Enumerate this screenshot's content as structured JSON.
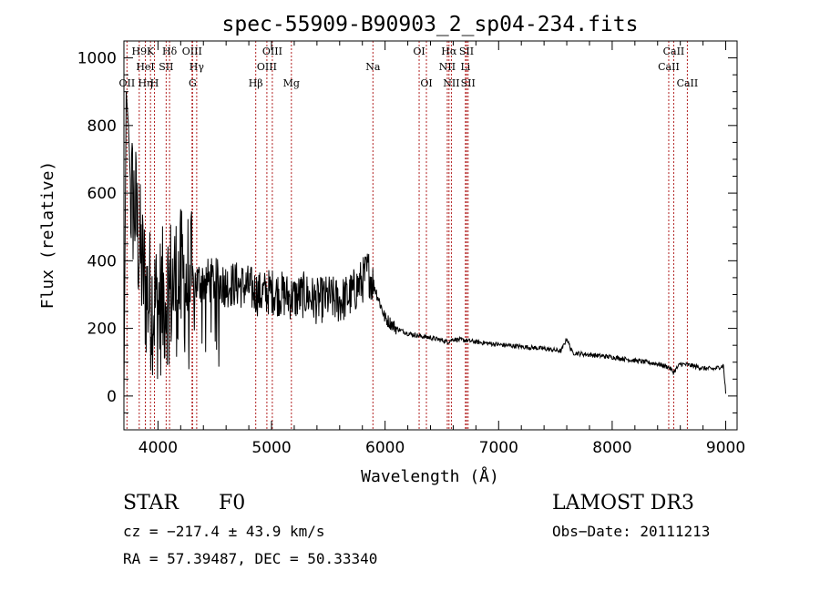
{
  "chart_data": {
    "type": "line",
    "title": "spec-55909-B90903_2_sp04-234.fits",
    "xlabel": "Wavelength (Å)",
    "ylabel": "Flux (relative)",
    "xlim": [
      3700,
      9100
    ],
    "ylim": [
      -100,
      1050
    ],
    "xticks": [
      4000,
      5000,
      6000,
      7000,
      8000,
      9000
    ],
    "xtick_labels": [
      "4000",
      "5000",
      "6000",
      "7000",
      "8000",
      "9000"
    ],
    "yticks": [
      0,
      200,
      400,
      600,
      800,
      1000
    ],
    "ytick_labels": [
      "0",
      "200",
      "400",
      "600",
      "800",
      "1000"
    ],
    "line_color": "#000000",
    "marker_color": "#b22222",
    "spectrum_anchor_points": {
      "x": [
        3700,
        3720,
        3740,
        3760,
        3800,
        3850,
        3900,
        3950,
        4000,
        4100,
        4200,
        4300,
        4400,
        4500,
        4600,
        4700,
        4800,
        4900,
        5000,
        5100,
        5200,
        5300,
        5400,
        5500,
        5600,
        5700,
        5800,
        5850,
        5900,
        5950,
        6000,
        6100,
        6200,
        6300,
        6400,
        6500,
        6550,
        6600,
        6700,
        6800,
        7000,
        7200,
        7400,
        7550,
        7600,
        7650,
        7800,
        8000,
        8200,
        8400,
        8500,
        8540,
        8600,
        8700,
        8800,
        8900,
        8980,
        9000
      ],
      "y": [
        0,
        900,
        800,
        600,
        550,
        400,
        300,
        280,
        260,
        320,
        340,
        330,
        340,
        340,
        330,
        330,
        320,
        300,
        310,
        300,
        290,
        300,
        280,
        290,
        280,
        300,
        340,
        370,
        330,
        280,
        230,
        200,
        185,
        178,
        172,
        165,
        160,
        168,
        165,
        160,
        152,
        146,
        140,
        133,
        170,
        128,
        122,
        115,
        105,
        95,
        85,
        70,
        95,
        90,
        82,
        80,
        90,
        10
      ]
    },
    "lines": [
      {
        "label": "OII",
        "x": 3727,
        "row": 2
      },
      {
        "label": "H9",
        "x": 3835,
        "row": 0
      },
      {
        "label": "HeI",
        "x": 3889,
        "row": 1
      },
      {
        "label": "Hη",
        "x": 3889,
        "row": 2
      },
      {
        "label": "K",
        "x": 3934,
        "row": 0
      },
      {
        "label": "H",
        "x": 3969,
        "row": 2
      },
      {
        "label": "SII",
        "x": 4072,
        "row": 1
      },
      {
        "label": "Hδ",
        "x": 4102,
        "row": 0
      },
      {
        "label": "OIII",
        "x": 4300,
        "row": 0
      },
      {
        "label": "G",
        "x": 4305,
        "row": 2
      },
      {
        "label": "Hγ",
        "x": 4341,
        "row": 1
      },
      {
        "label": "Hβ",
        "x": 4861,
        "row": 2
      },
      {
        "label": "OIII",
        "x": 4959,
        "row": 1
      },
      {
        "label": "OIII",
        "x": 5007,
        "row": 0
      },
      {
        "label": "Mg",
        "x": 5175,
        "row": 2
      },
      {
        "label": "Na",
        "x": 5893,
        "row": 1
      },
      {
        "label": "OI",
        "x": 6300,
        "row": 0
      },
      {
        "label": "OI",
        "x": 6364,
        "row": 2
      },
      {
        "label": "NII",
        "x": 6548,
        "row": 1
      },
      {
        "label": "Hα",
        "x": 6563,
        "row": 0
      },
      {
        "label": "NII",
        "x": 6584,
        "row": 2
      },
      {
        "label": "Li",
        "x": 6708,
        "row": 1
      },
      {
        "label": "SII",
        "x": 6717,
        "row": 0
      },
      {
        "label": "SII",
        "x": 6731,
        "row": 2
      },
      {
        "label": "CaII",
        "x": 8498,
        "row": 1
      },
      {
        "label": "CaII",
        "x": 8542,
        "row": 0
      },
      {
        "label": "CaII",
        "x": 8662,
        "row": 2
      }
    ]
  },
  "info": {
    "object_class": "STAR",
    "subclass": "F0",
    "survey": "LAMOST DR3",
    "cz": "cz = −217.4 ± 43.9 km/s",
    "obs_date": "Obs−Date: 20111213",
    "coords": "RA =  57.39487, DEC =  50.33340"
  }
}
